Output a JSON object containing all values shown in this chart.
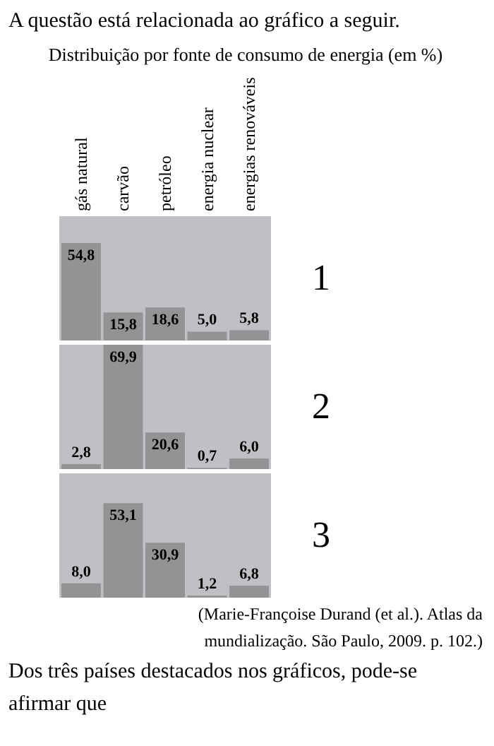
{
  "chart_data": [
    {
      "type": "bar",
      "title": "Distribuição por fonte de consumo de energia (em %)",
      "subtitle": "A questão está relacionada ao gráfico a seguir.",
      "categories": [
        "gás natural",
        "carvão",
        "petróleo",
        "energia nuclear",
        "energias renováveis"
      ],
      "values": [
        54.8,
        15.8,
        18.6,
        5.0,
        5.8
      ],
      "value_labels": [
        "54,8",
        "15,8",
        "18,6",
        "5,0",
        "5,8"
      ],
      "color": "#939396",
      "annotations": [
        "1"
      ],
      "tick_labels": "x"
    },
    {
      "type": "bar",
      "categories": [
        null,
        null,
        null,
        null,
        null
      ],
      "values": [
        2.8,
        69.9,
        20.6,
        0.7,
        6.0
      ],
      "value_labels": [
        "2,8",
        "69,9",
        "20,6",
        "0,7",
        "6,0"
      ],
      "color": "#939396",
      "annotations": [
        "2"
      ],
      "tick_labels": false
    },
    {
      "type": "bar",
      "categories": [
        null,
        null,
        null,
        null,
        null
      ],
      "values": [
        8.0,
        53.1,
        30.9,
        1.2,
        6.8
      ],
      "value_labels": [
        "8,0",
        "53,1",
        "30,9",
        "1,2",
        "6,8"
      ],
      "color": "#939396",
      "annotations": [
        "3",
        "(Marie-Françoise Durand (et al.). Atlas da mundialização. São Paulo, 2009. p. 102.)",
        "Dos três países destacados nos gráficos, pode-se afirmar que"
      ],
      "tick_labels": false
    }
  ]
}
